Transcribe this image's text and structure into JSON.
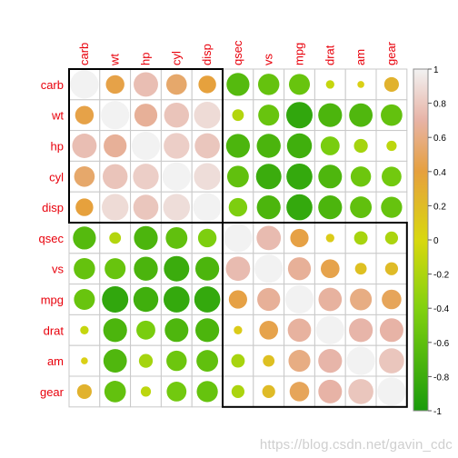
{
  "chart_data": {
    "type": "heatmap",
    "title": "",
    "variables": [
      "carb",
      "wt",
      "hp",
      "cyl",
      "disp",
      "qsec",
      "vs",
      "mpg",
      "drat",
      "am",
      "gear"
    ],
    "matrix": [
      [
        1.0,
        0.43,
        0.75,
        0.53,
        0.39,
        -0.66,
        -0.57,
        -0.55,
        -0.09,
        0.06,
        0.27
      ],
      [
        0.43,
        1.0,
        0.66,
        0.78,
        0.89,
        -0.17,
        -0.55,
        -0.87,
        -0.71,
        -0.69,
        -0.58
      ],
      [
        0.75,
        0.66,
        1.0,
        0.83,
        0.79,
        -0.71,
        -0.72,
        -0.78,
        -0.45,
        -0.24,
        -0.13
      ],
      [
        0.53,
        0.78,
        0.83,
        1.0,
        0.9,
        -0.59,
        -0.81,
        -0.85,
        -0.7,
        -0.52,
        -0.49
      ],
      [
        0.39,
        0.89,
        0.79,
        0.9,
        1.0,
        -0.43,
        -0.71,
        -0.85,
        -0.71,
        -0.59,
        -0.56
      ],
      [
        -0.66,
        -0.17,
        -0.71,
        -0.59,
        -0.43,
        1.0,
        0.74,
        0.42,
        0.09,
        -0.23,
        -0.21
      ],
      [
        -0.57,
        -0.55,
        -0.72,
        -0.81,
        -0.71,
        0.74,
        1.0,
        0.66,
        0.44,
        0.17,
        0.21
      ],
      [
        -0.55,
        -0.87,
        -0.78,
        -0.85,
        -0.85,
        0.42,
        0.66,
        1.0,
        0.68,
        0.6,
        0.48
      ],
      [
        -0.09,
        -0.71,
        -0.45,
        -0.7,
        -0.71,
        0.09,
        0.44,
        0.68,
        1.0,
        0.71,
        0.7
      ],
      [
        0.06,
        -0.69,
        -0.24,
        -0.52,
        -0.59,
        -0.23,
        0.17,
        0.6,
        0.71,
        1.0,
        0.79
      ],
      [
        0.27,
        -0.58,
        -0.13,
        -0.49,
        -0.56,
        -0.21,
        0.21,
        0.48,
        0.7,
        0.79,
        1.0
      ]
    ],
    "clusters": [
      [
        0,
        4
      ],
      [
        5,
        10
      ]
    ],
    "colorbar": {
      "range": [
        -1,
        1
      ],
      "ticks": [
        "1",
        "0.8",
        "0.6",
        "0.4",
        "0.2",
        "0",
        "-0.2",
        "-0.4",
        "-0.6",
        "-0.8",
        "-1"
      ],
      "tick_values": [
        1,
        0.8,
        0.6,
        0.4,
        0.2,
        0,
        -0.2,
        -0.4,
        -0.6,
        -0.8,
        -1
      ]
    },
    "colors": {
      "positive_high": "#f2f2f2",
      "positive_mid": "#e7b3a6",
      "positive_low": "#e6a03e",
      "zero": "#d8d80e",
      "negative_low": "#82d10f",
      "negative_high": "#1a9b0c",
      "label": "#e8000b",
      "grid": "#c9c9c9",
      "cluster_border": "#000000"
    },
    "legend_placement": "right",
    "grid": true
  },
  "watermark": "https://blog.csdn.net/gavin_cdc"
}
